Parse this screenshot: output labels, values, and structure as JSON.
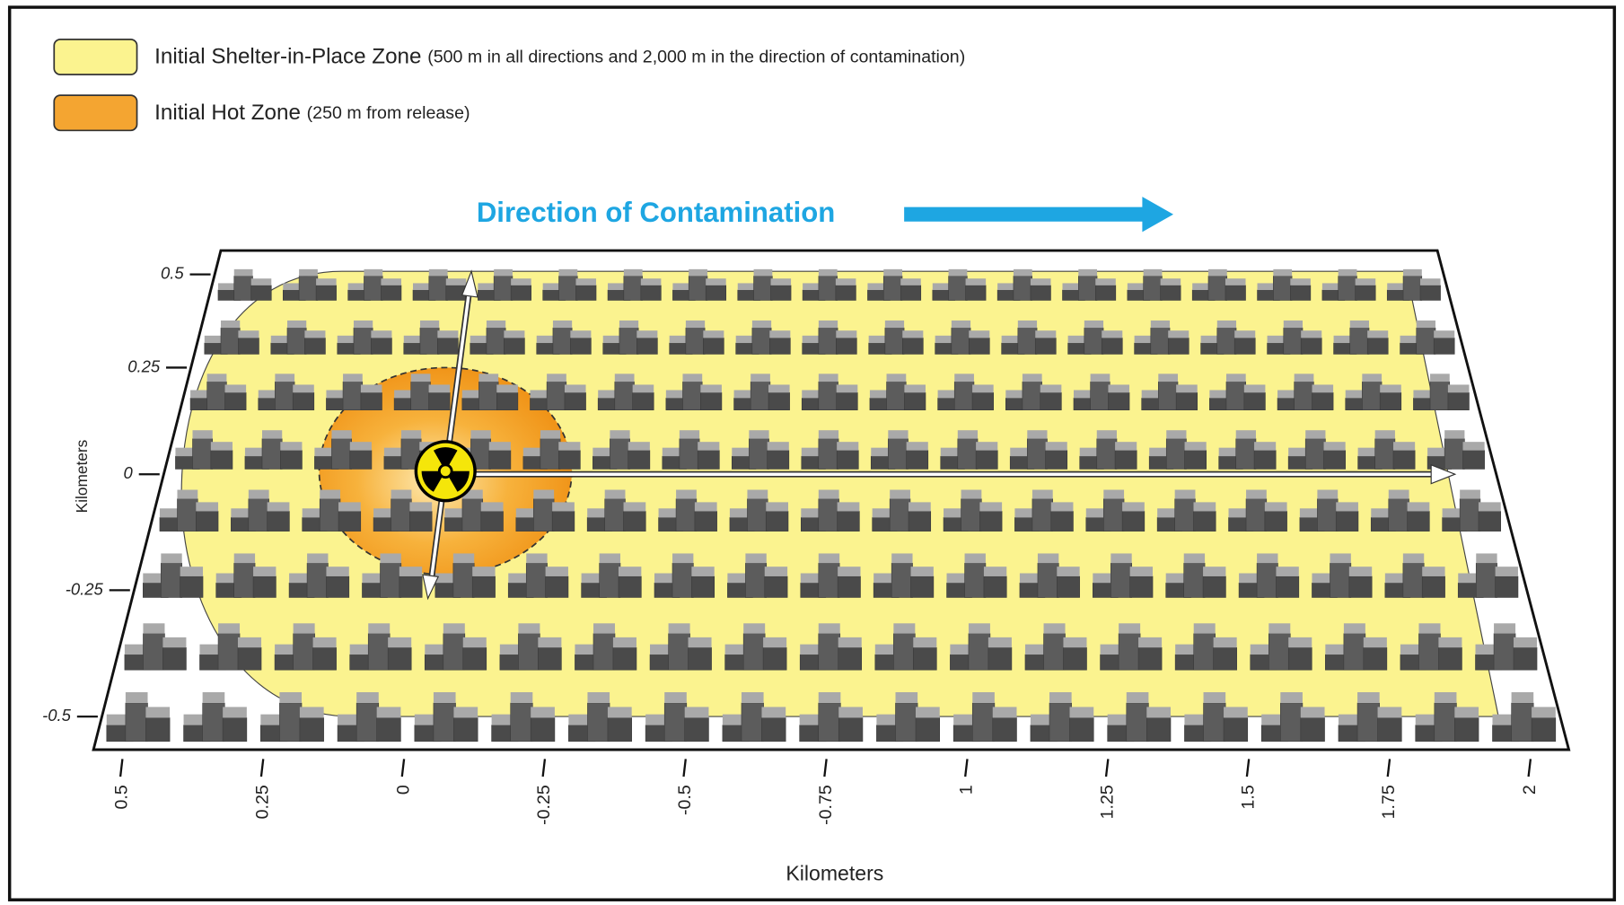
{
  "legend": [
    {
      "label": "Initial Shelter-in-Place Zone",
      "note": "(500 m in all directions and 2,000 m in the direction of contamination)"
    },
    {
      "label": "Initial Hot Zone",
      "note": "(250 m from release)"
    }
  ],
  "direction_label": "Direction of Contamination",
  "y_axis": {
    "label": "Kilometers",
    "ticks": [
      "0.5",
      "0.25",
      "0",
      "-0.25",
      "-0.5"
    ]
  },
  "x_axis": {
    "label": "Kilometers",
    "ticks": [
      "0.5",
      "0.25",
      "0",
      "-0.25",
      "-0.5",
      "-0.75",
      "1",
      "1.25",
      "1.5",
      "1.75",
      "2"
    ]
  }
}
